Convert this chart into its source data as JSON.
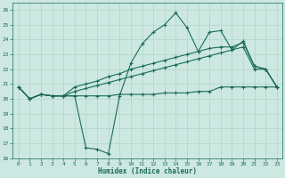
{
  "xlabel": "Humidex (Indice chaleur)",
  "background_color": "#cce8e0",
  "grid_color": "#b0d4c8",
  "line_color": "#1a6b5a",
  "xlim": [
    -0.5,
    23.5
  ],
  "ylim": [
    16,
    26.5
  ],
  "yticks": [
    16,
    17,
    18,
    19,
    20,
    21,
    22,
    23,
    24,
    25,
    26
  ],
  "xticks": [
    0,
    1,
    2,
    3,
    4,
    5,
    6,
    7,
    8,
    9,
    10,
    11,
    12,
    13,
    14,
    15,
    16,
    17,
    18,
    19,
    20,
    21,
    22,
    23
  ],
  "series": [
    {
      "x": [
        0,
        1,
        2,
        3,
        4,
        5,
        6,
        7,
        8,
        9,
        10,
        11,
        12,
        13,
        14,
        15,
        16,
        17,
        18,
        19,
        20,
        21,
        22,
        23
      ],
      "y": [
        20.8,
        20.0,
        20.3,
        20.2,
        20.2,
        20.2,
        16.7,
        16.6,
        16.3,
        20.2,
        22.4,
        23.7,
        24.5,
        25.0,
        25.8,
        24.8,
        23.2,
        24.5,
        24.6,
        23.3,
        23.9,
        22.2,
        22.0,
        20.8
      ]
    },
    {
      "x": [
        0,
        1,
        2,
        3,
        4,
        5,
        6,
        7,
        8,
        9,
        10,
        11,
        12,
        13,
        14,
        15,
        16,
        17,
        18,
        19,
        20,
        21,
        22,
        23
      ],
      "y": [
        20.8,
        20.0,
        20.3,
        20.2,
        20.2,
        20.8,
        21.0,
        21.2,
        21.5,
        21.7,
        22.0,
        22.2,
        22.4,
        22.6,
        22.8,
        23.0,
        23.2,
        23.4,
        23.5,
        23.5,
        23.8,
        22.2,
        22.0,
        20.8
      ]
    },
    {
      "x": [
        0,
        1,
        2,
        3,
        4,
        5,
        6,
        7,
        8,
        9,
        10,
        11,
        12,
        13,
        14,
        15,
        16,
        17,
        18,
        19,
        20,
        21,
        22,
        23
      ],
      "y": [
        20.8,
        20.0,
        20.3,
        20.2,
        20.2,
        20.5,
        20.7,
        20.9,
        21.1,
        21.3,
        21.5,
        21.7,
        21.9,
        22.1,
        22.3,
        22.5,
        22.7,
        22.9,
        23.1,
        23.3,
        23.5,
        22.0,
        22.0,
        20.8
      ]
    },
    {
      "x": [
        0,
        1,
        2,
        3,
        4,
        5,
        6,
        7,
        8,
        9,
        10,
        11,
        12,
        13,
        14,
        15,
        16,
        17,
        18,
        19,
        20,
        21,
        22,
        23
      ],
      "y": [
        20.8,
        20.0,
        20.3,
        20.2,
        20.2,
        20.2,
        20.2,
        20.2,
        20.2,
        20.3,
        20.3,
        20.3,
        20.3,
        20.4,
        20.4,
        20.4,
        20.5,
        20.5,
        20.8,
        20.8,
        20.8,
        20.8,
        20.8,
        20.8
      ]
    }
  ]
}
